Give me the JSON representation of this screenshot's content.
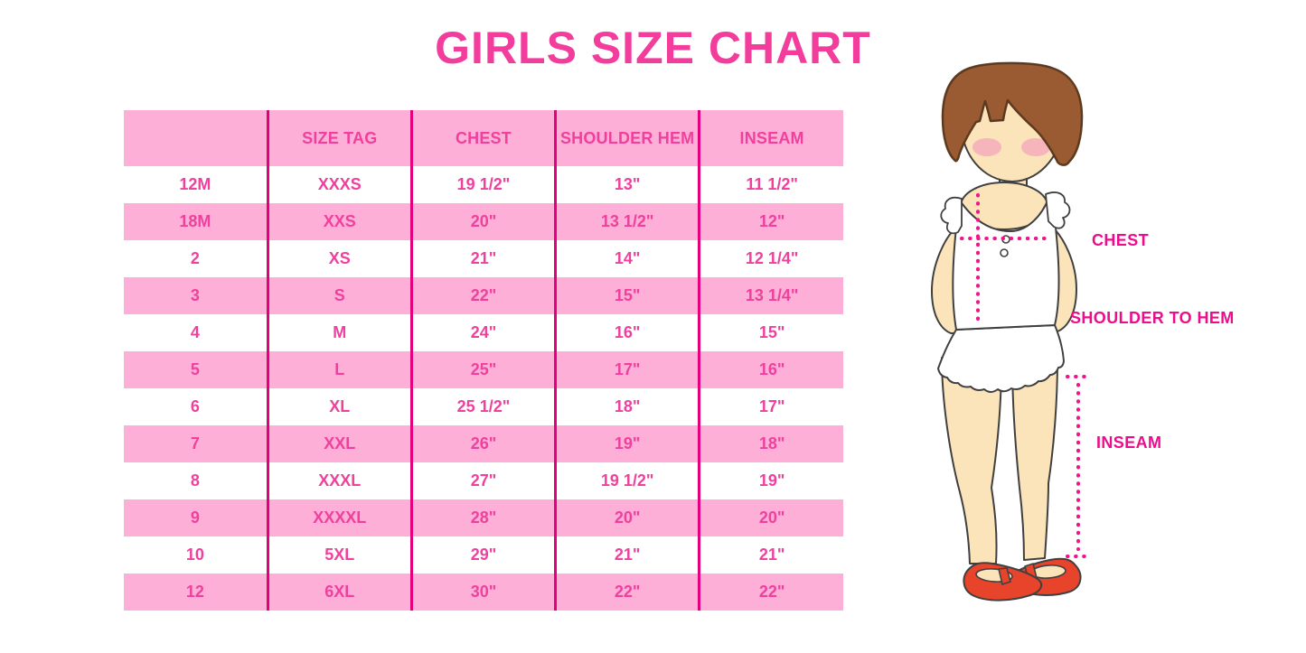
{
  "title": "GIRLS SIZE CHART",
  "chart_data": {
    "type": "table",
    "columns": [
      "",
      "SIZE TAG",
      "CHEST",
      "SHOULDER HEM",
      "INSEAM"
    ],
    "rows": [
      [
        "12M",
        "XXXS",
        "19 1/2\"",
        "13\"",
        "11 1/2\""
      ],
      [
        "18M",
        "XXS",
        "20\"",
        "13 1/2\"",
        "12\""
      ],
      [
        "2",
        "XS",
        "21\"",
        "14\"",
        "12 1/4\""
      ],
      [
        "3",
        "S",
        "22\"",
        "15\"",
        "13 1/4\""
      ],
      [
        "4",
        "M",
        "24\"",
        "16\"",
        "15\""
      ],
      [
        "5",
        "L",
        "25\"",
        "17\"",
        "16\""
      ],
      [
        "6",
        "XL",
        "25 1/2\"",
        "18\"",
        "17\""
      ],
      [
        "7",
        "XXL",
        "26\"",
        "19\"",
        "18\""
      ],
      [
        "8",
        "XXXL",
        "27\"",
        "19 1/2\"",
        "19\""
      ],
      [
        "9",
        "XXXXL",
        "28\"",
        "20\"",
        "20\""
      ],
      [
        "10",
        "5XL",
        "29\"",
        "21\"",
        "21\""
      ],
      [
        "12",
        "6XL",
        "30\"",
        "22\"",
        "22\""
      ]
    ]
  },
  "figure": {
    "labels": {
      "chest": "CHEST",
      "shoulder_to_hem": "SHOULDER TO HEM",
      "inseam": "INSEAM"
    }
  },
  "colors": {
    "title_pink": "#F23D9C",
    "row_pink": "#FDAFD7",
    "divider_magenta": "#E4007D",
    "table_text_pink": "#F0409D",
    "label_pink": "#EC0C8C",
    "dotted_pink": "#F0148C",
    "hair_brown": "#9A5B33",
    "hair_outline": "#5C3A20",
    "skin": "#FBE3BA",
    "outline_gray": "#404040",
    "blush_pink": "#F5A8BC",
    "shoe_red": "#E8432B",
    "white": "#FFFFFF"
  }
}
